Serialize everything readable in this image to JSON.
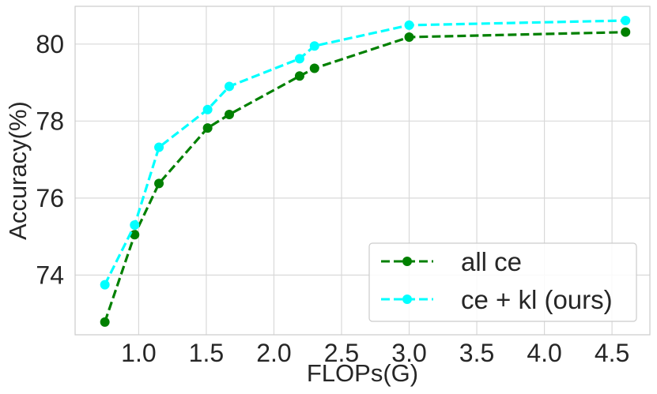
{
  "chart_data": {
    "type": "line",
    "title": "",
    "xlabel": "FLOPs(G)",
    "ylabel": "Accuracy(%)",
    "xlim": [
      0.53,
      4.78
    ],
    "ylim": [
      72.45,
      80.98
    ],
    "xticks": [
      1.0,
      1.5,
      2.0,
      2.5,
      3.0,
      3.5,
      4.0,
      4.5
    ],
    "xtick_labels": [
      "1.0",
      "1.5",
      "2.0",
      "2.5",
      "3.0",
      "3.5",
      "4.0",
      "4.5"
    ],
    "yticks": [
      74,
      76,
      78,
      80
    ],
    "ytick_labels": [
      "74",
      "76",
      "78",
      "80"
    ],
    "grid": true,
    "legend_position": "bottom-right",
    "series": [
      {
        "name": "all ce",
        "color": "#008000",
        "line_style": "dashed",
        "marker": "circle",
        "x": [
          0.75,
          0.97,
          1.15,
          1.51,
          1.67,
          2.19,
          2.3,
          3.0,
          4.6
        ],
        "y": [
          72.78,
          75.05,
          76.38,
          77.82,
          78.17,
          79.17,
          79.37,
          80.18,
          80.31
        ]
      },
      {
        "name": "ce + kl (ours)",
        "color": "#00ffff",
        "line_style": "dashed",
        "marker": "circle",
        "x": [
          0.75,
          0.97,
          1.15,
          1.51,
          1.67,
          2.19,
          2.3,
          3.0,
          4.6
        ],
        "y": [
          73.75,
          75.3,
          77.32,
          78.3,
          78.9,
          79.62,
          79.95,
          80.49,
          80.61
        ]
      }
    ]
  }
}
